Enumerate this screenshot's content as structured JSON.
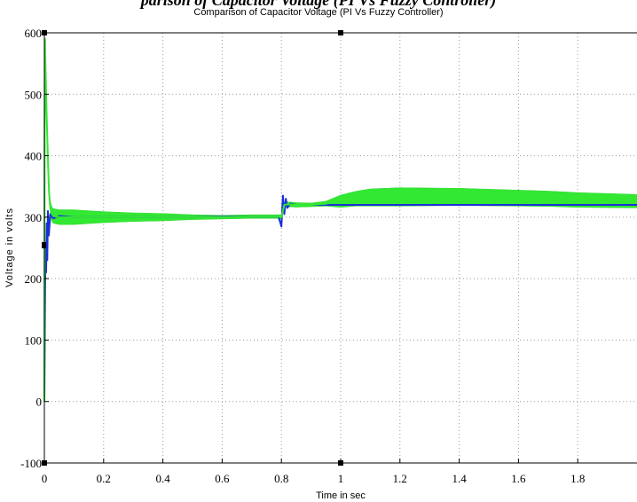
{
  "heading": "parison of Capacitor Voltage (PI Vs Fuzzy Controller)",
  "chart_data": {
    "type": "line",
    "title": "Comparison of Capacitor Voltage (PI Vs Fuzzy Controller)",
    "xlabel": "Time in sec",
    "ylabel": "Voltage in volts",
    "xlim": [
      0,
      2
    ],
    "ylim": [
      -100,
      600
    ],
    "grid": true,
    "xticks": [
      0,
      0.2,
      0.4,
      0.6,
      0.8,
      1,
      1.2,
      1.4,
      1.6,
      1.8
    ],
    "xtick_labels": [
      "0",
      "0.2",
      "0.4",
      "0.6",
      "0.8",
      "1",
      "1.2",
      "1.4",
      "1.6",
      "1.8"
    ],
    "yticks": [
      -100,
      0,
      100,
      200,
      300,
      400,
      500,
      600
    ],
    "ytick_labels": [
      "-100",
      "0",
      "100",
      "200",
      "300",
      "400",
      "500",
      "600"
    ],
    "series": [
      {
        "color": "#1a2fd8",
        "x": [
          0,
          0.002,
          0.004,
          0.006,
          0.008,
          0.01,
          0.012,
          0.015,
          0.02,
          0.03,
          0.05,
          0.1,
          0.2,
          0.3,
          0.4,
          0.5,
          0.6,
          0.7,
          0.79,
          0.8,
          0.805,
          0.81,
          0.815,
          0.82,
          0.83,
          0.85,
          0.9,
          0.95,
          1.0,
          1.05,
          1.1,
          1.2,
          1.3,
          1.4,
          1.5,
          1.6,
          1.7,
          1.8,
          1.9,
          2.0
        ],
        "y": [
          0,
          150,
          250,
          210,
          290,
          230,
          310,
          270,
          305,
          298,
          302,
          300,
          300,
          300,
          300,
          300,
          301,
          301,
          301,
          285,
          335,
          305,
          330,
          315,
          322,
          320,
          320,
          320,
          320,
          320,
          320,
          320,
          320,
          320,
          320,
          320,
          320,
          320,
          320,
          320
        ]
      },
      {
        "color": "#33e833",
        "x": [
          0,
          0.001,
          0.002,
          0.003,
          0.005,
          0.007,
          0.01,
          0.013,
          0.016,
          0.02,
          0.025,
          0.03,
          0.05,
          0.1,
          0.2,
          0.3,
          0.4,
          0.5,
          0.6,
          0.7,
          0.79,
          0.8,
          0.81,
          0.82,
          0.85,
          0.9,
          0.95,
          1.0,
          1.05,
          1.1,
          1.2,
          1.3,
          1.4,
          1.5,
          1.6,
          1.7,
          1.8,
          1.9,
          2.0
        ],
        "y": [
          0,
          430,
          590,
          560,
          520,
          480,
          430,
          380,
          340,
          315,
          305,
          302,
          300,
          300,
          300,
          300,
          300,
          300,
          300,
          301,
          301,
          300,
          320,
          321,
          320,
          320,
          322,
          326,
          330,
          332,
          333,
          333,
          333,
          332,
          331,
          330,
          328,
          327,
          326
        ]
      }
    ],
    "band_width_volts": [
      [
        0.02,
        12
      ],
      [
        0.1,
        12
      ],
      [
        0.2,
        9
      ],
      [
        0.3,
        7
      ],
      [
        0.4,
        6
      ],
      [
        0.5,
        4
      ],
      [
        0.6,
        3
      ],
      [
        0.7,
        3
      ],
      [
        0.79,
        3
      ],
      [
        0.83,
        4
      ],
      [
        0.9,
        3
      ],
      [
        0.95,
        4
      ],
      [
        1.0,
        10
      ],
      [
        1.1,
        14
      ],
      [
        1.2,
        15
      ],
      [
        1.4,
        14
      ],
      [
        1.6,
        13
      ],
      [
        1.8,
        12
      ],
      [
        2.0,
        11
      ]
    ]
  }
}
